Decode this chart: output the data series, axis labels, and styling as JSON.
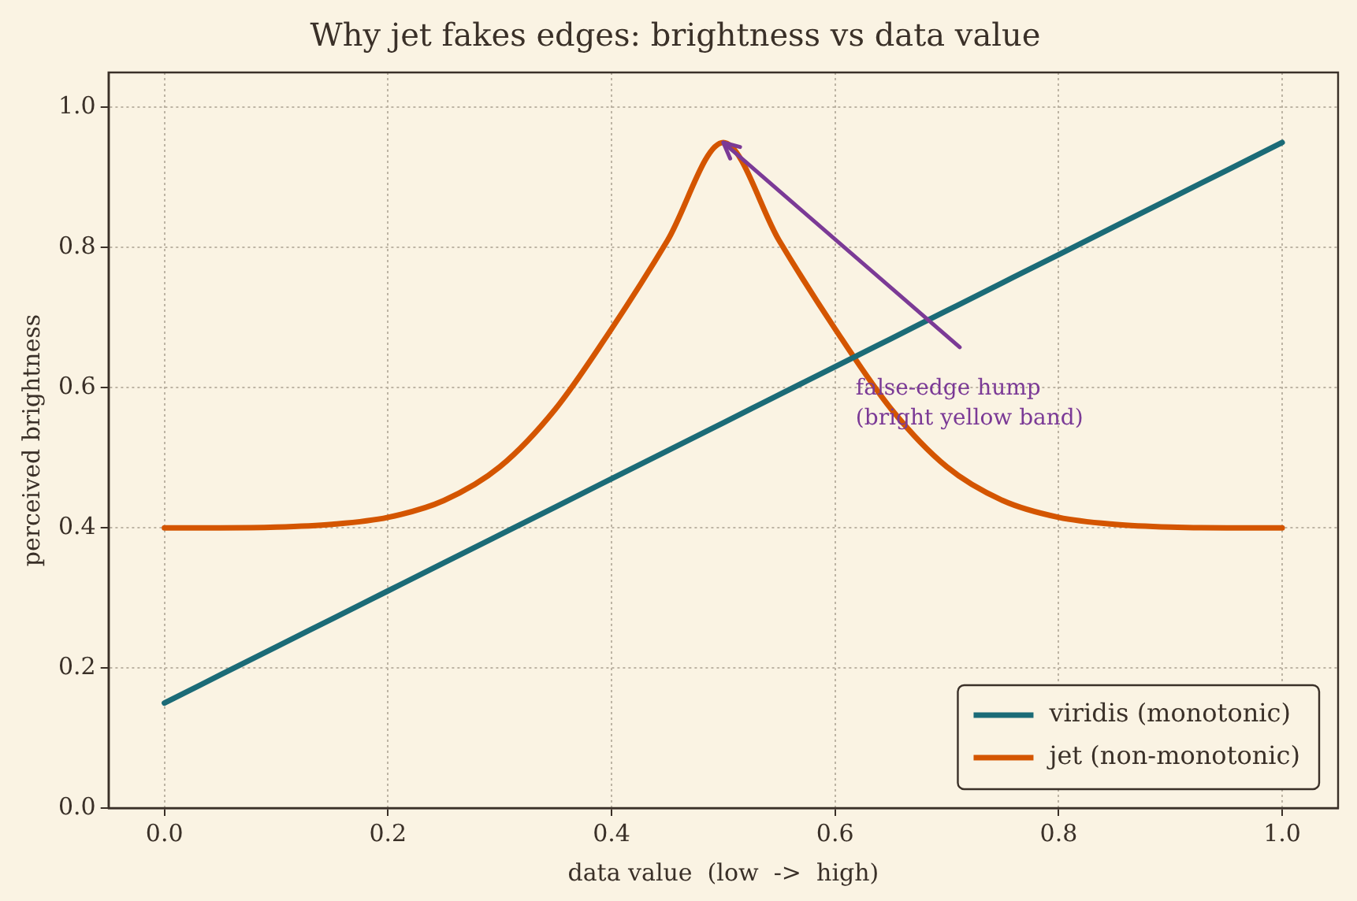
{
  "chart_data": {
    "type": "line",
    "title": "Why jet fakes edges: brightness vs data value",
    "xlabel": "data value  (low  ->  high)",
    "ylabel": "perceived brightness",
    "x": [
      0,
      0.05,
      0.1,
      0.15,
      0.2,
      0.25,
      0.3,
      0.35,
      0.4,
      0.45,
      0.5,
      0.55,
      0.6,
      0.65,
      0.7,
      0.75,
      0.8,
      0.85,
      0.9,
      0.95,
      1
    ],
    "series": [
      {
        "name": "viridis (monotonic)",
        "color": "#1b6b77",
        "values": [
          0.15,
          0.19,
          0.23,
          0.27,
          0.31,
          0.35,
          0.39,
          0.43,
          0.47,
          0.51,
          0.55,
          0.59,
          0.63,
          0.67,
          0.71,
          0.75,
          0.79,
          0.83,
          0.87,
          0.91,
          0.95
        ]
      },
      {
        "name": "jet (non-monotonic)",
        "color": "#d45500",
        "values": [
          0.4,
          0.4,
          0.401,
          0.405,
          0.415,
          0.439,
          0.487,
          0.57,
          0.684,
          0.81,
          0.95,
          0.81,
          0.684,
          0.57,
          0.487,
          0.439,
          0.415,
          0.405,
          0.401,
          0.4,
          0.4
        ]
      }
    ],
    "xlim": [
      -0.05,
      1.05
    ],
    "ylim": [
      0,
      1.05
    ],
    "xticks": [
      {
        "value": 0,
        "label": "0.0"
      },
      {
        "value": 0.2,
        "label": "0.2"
      },
      {
        "value": 0.4,
        "label": "0.4"
      },
      {
        "value": 0.6,
        "label": "0.6"
      },
      {
        "value": 0.8,
        "label": "0.8"
      },
      {
        "value": 1,
        "label": "1.0"
      }
    ],
    "yticks": [
      {
        "value": 0,
        "label": "0.0"
      },
      {
        "value": 0.2,
        "label": "0.2"
      },
      {
        "value": 0.4,
        "label": "0.4"
      },
      {
        "value": 0.6,
        "label": "0.6"
      },
      {
        "value": 0.8,
        "label": "0.8"
      },
      {
        "value": 1,
        "label": "1.0"
      }
    ],
    "annotations": [
      {
        "text": "false-edge hump\n(bright yellow band)",
        "x": 0.5,
        "y": 0.95
      }
    ],
    "grid": true,
    "legend": "bottom right",
    "marker": "none",
    "line_style": "solid"
  }
}
